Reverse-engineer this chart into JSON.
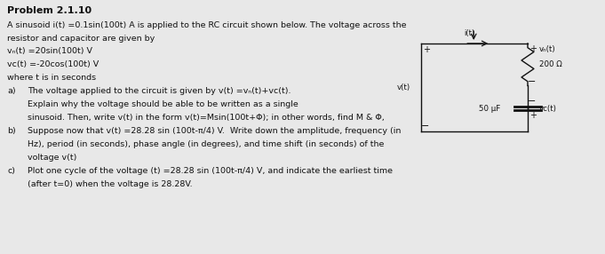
{
  "title": "Problem 2.1.10",
  "background_color": "#e8e8e8",
  "text_color": "#111111",
  "line1": "A sinusoid i(t) =0.1sin(100t) A is applied to the RC circuit shown below. The voltage across the",
  "line2": "resistor and capacitor are given by",
  "line3": "vₙ(t) =20sin(100t) V",
  "line4": "vᴄ(t) =-20cos(100t) V",
  "line5": "where t is in seconds",
  "part_a_label": "a)",
  "part_a_lines": [
    "The voltage applied to the circuit is given by v(t) =vₙ(t)+vᴄ(t).",
    "Explain why the voltage should be able to be written as a single",
    "sinusoid. Then, write v(t) in the form v(t)=Msin(100t+Φ); in other words, find M & Φ,"
  ],
  "part_b_label": "b)",
  "part_b_lines": [
    "Suppose now that v(t) =28.28 sin (100t-π/4) V.  Write down the amplitude, frequency (in",
    "Hz), period (in seconds), phase angle (in degrees), and time shift (in seconds) of the",
    "voltage v(t)"
  ],
  "part_c_label": "c)",
  "part_c_lines": [
    "Plot one cycle of the voltage (t) =28.28 sin (100t-π/4) V, and indicate the earliest time",
    "(after t=0) when the voltage is 28.28V."
  ],
  "resistor_label": "200 Ω",
  "capacitor_label": "50 μF",
  "current_label": "i(t)",
  "vsource_label": "v(t)",
  "vR_label": "vₙ(t)",
  "vC_label": "vᴄ(t)"
}
